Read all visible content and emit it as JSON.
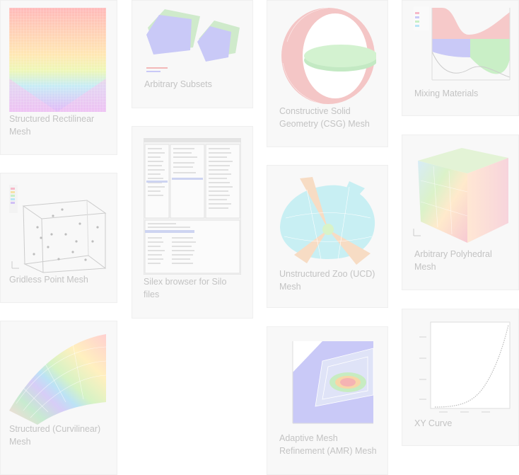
{
  "gallery": {
    "items": [
      {
        "caption": "Structured Rectilinear Mesh"
      },
      {
        "caption": "Arbitrary Subsets"
      },
      {
        "caption": "Constructive Solid Geometry (CSG) Mesh"
      },
      {
        "caption": "Mixing Materials"
      },
      {
        "caption": "Gridless Point Mesh"
      },
      {
        "caption": "Silex browser for Silo files"
      },
      {
        "caption": "Unstructured Zoo (UCD) Mesh"
      },
      {
        "caption": "Arbitrary Polyhedral Mesh"
      },
      {
        "caption": "Structured (Curvilinear) Mesh"
      },
      {
        "caption": "Adaptive Mesh Refinement (AMR) Mesh"
      },
      {
        "caption": "XY Curve"
      }
    ]
  }
}
